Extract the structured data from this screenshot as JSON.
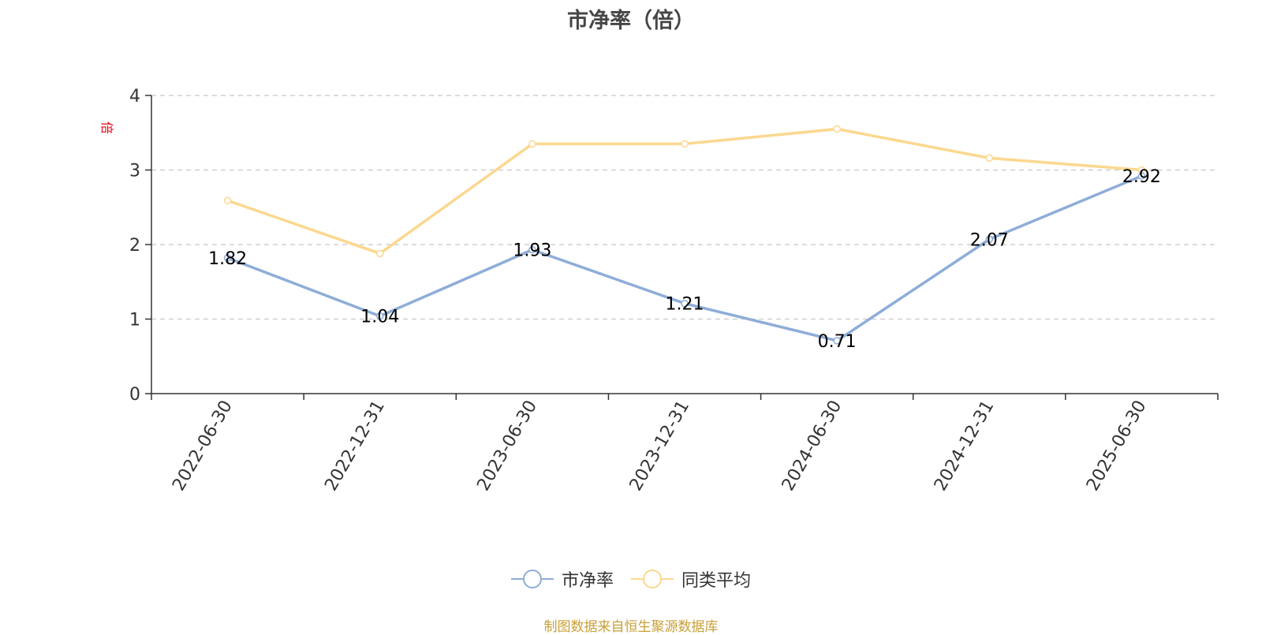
{
  "chart_data": {
    "type": "line",
    "title": "市净率（倍）",
    "ylabel": "倍",
    "xlabel": "",
    "categories": [
      "2022-06-30",
      "2022-12-31",
      "2023-06-30",
      "2023-12-31",
      "2024-06-30",
      "2024-12-31",
      "2025-06-30"
    ],
    "ylim": [
      0,
      4
    ],
    "yticks": [
      0,
      1,
      2,
      3,
      4
    ],
    "grid": true,
    "legend_position": "bottom",
    "series": [
      {
        "name": "市净率",
        "color": "#8eadd8",
        "values": [
          1.82,
          1.04,
          1.93,
          1.21,
          0.71,
          2.07,
          2.92
        ],
        "labels": [
          "1.82",
          "1.04",
          "1.93",
          "1.21",
          "0.71",
          "2.07",
          "2.92"
        ]
      },
      {
        "name": "同类平均",
        "color": "#fbd88f",
        "values": [
          2.59,
          1.88,
          3.35,
          3.35,
          3.55,
          3.16,
          3.0
        ]
      }
    ]
  },
  "legend": {
    "items": [
      "市净率",
      "同类平均"
    ]
  },
  "footer": {
    "source_note": "制图数据来自恒生聚源数据库"
  }
}
